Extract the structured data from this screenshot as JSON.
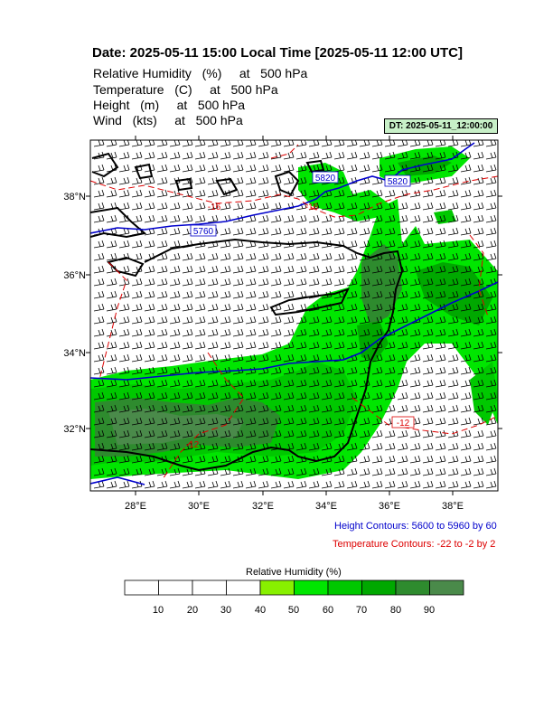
{
  "header": {
    "title": "Date: 2025-05-11  15:00 Local Time [2025-05-11  12:00 UTC]",
    "lines": [
      "Relative Humidity   (%)     at   500 hPa",
      "Temperature   (C)     at   500 hPa",
      "Height   (m)     at   500 hPa",
      "Wind   (kts)     at   500 hPa"
    ],
    "valid_time": "DT: 2025-05-11_12:00:00"
  },
  "map": {
    "lon_labels": [
      "28°E",
      "30°E",
      "32°E",
      "34°E",
      "36°E",
      "38°E"
    ],
    "lat_labels": [
      "38°N",
      "36°N",
      "34°N",
      "32°N"
    ],
    "height_contour_labels": [
      "5820",
      "5820",
      "5760",
      "5820"
    ],
    "temperature_contour_labels": [
      "-16",
      "-16",
      "-12",
      "-12"
    ],
    "colors": {
      "height_contour": "#0000cc",
      "temperature_contour": "#dd0000",
      "coastline": "#000000",
      "wind_barb": "#000000"
    }
  },
  "notes": {
    "height": "Height Contours: 5600 to 5960 by 60",
    "temperature": "Temperature Contours: -22 to -2 by 2"
  },
  "colorbar": {
    "title": "Relative Humidity  (%)",
    "labels": [
      "10",
      "20",
      "30",
      "40",
      "50",
      "60",
      "70",
      "80",
      "90"
    ],
    "colors": [
      "#ffffff",
      "#ffffff",
      "#ffffff",
      "#ffffff",
      "#88f000",
      "#00e600",
      "#00c800",
      "#00a800",
      "#2e8b2e",
      "#4a8a4a"
    ]
  }
}
